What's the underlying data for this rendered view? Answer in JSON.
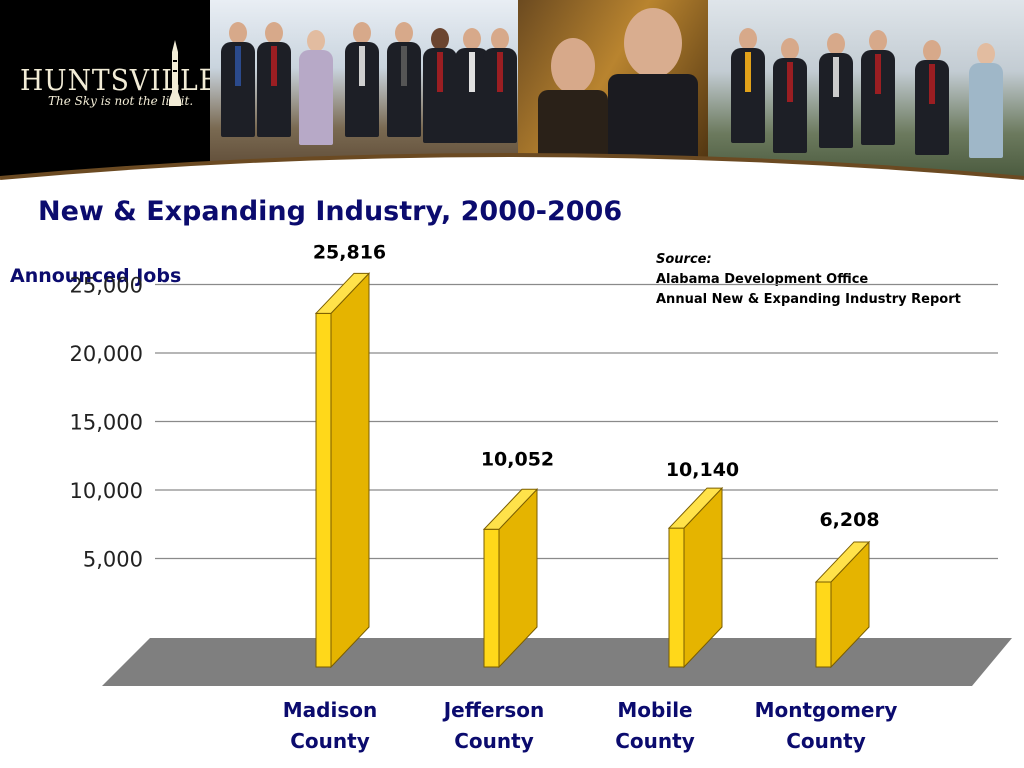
{
  "banner": {
    "logo_word": "HUNTSVILLE",
    "logo_tagline": "The Sky is not the limit."
  },
  "source": {
    "title": "Source:",
    "line1": "Alabama Development Office",
    "line2": "Annual New & Expanding Industry Report"
  },
  "chart_data": {
    "type": "bar",
    "title": "New & Expanding Industry, 2000-2006",
    "xlabel": "",
    "ylabel": "Announced Jobs",
    "categories": [
      [
        "Madison",
        "County"
      ],
      [
        "Jefferson",
        "County"
      ],
      [
        "Mobile",
        "County"
      ],
      [
        "Montgomery",
        "County"
      ]
    ],
    "values": [
      25816,
      10052,
      10140,
      6208
    ],
    "data_labels": [
      "25,816",
      "10,052",
      "10,140",
      "6,208"
    ],
    "yticks": [
      5000,
      10000,
      15000,
      20000,
      25000
    ],
    "ytick_labels": [
      "5,000",
      "10,000",
      "15,000",
      "20,000",
      "25,000"
    ],
    "ylim": [
      0,
      25000
    ],
    "grid": true,
    "bar_color": "#e5b400",
    "bar_highlight": "#ffd81a",
    "floor_color": "#7f7f7f",
    "title_color": "#0b0b6e"
  }
}
